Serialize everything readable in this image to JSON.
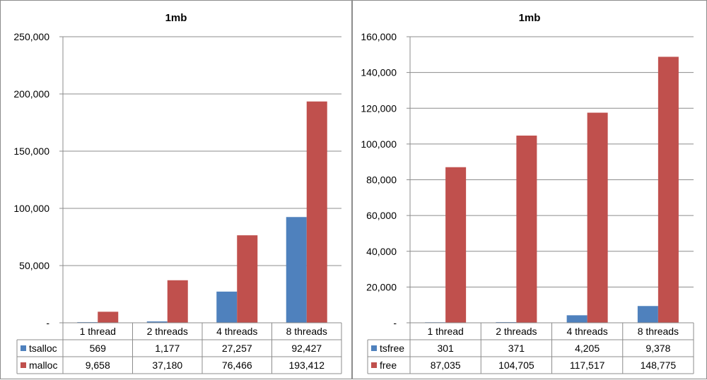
{
  "charts": [
    {
      "title": "1mb",
      "type": "bar",
      "categories": [
        "1 thread",
        "2 threads",
        "4 threads",
        "8 threads"
      ],
      "ylim": [
        0,
        250000
      ],
      "y_ticks": [
        "-",
        "50,000",
        "100,000",
        "150,000",
        "200,000",
        "250,000"
      ],
      "series": [
        {
          "name": "tsalloc",
          "color": "#4F81BD",
          "values": [
            569,
            1177,
            27257,
            92427
          ],
          "labels": [
            "569",
            "1,177",
            "27,257",
            "92,427"
          ]
        },
        {
          "name": "malloc",
          "color": "#C0504D",
          "values": [
            9658,
            37180,
            76466,
            193412
          ],
          "labels": [
            "9,658",
            "37,180",
            "76,466",
            "193,412"
          ]
        }
      ]
    },
    {
      "title": "1mb",
      "type": "bar",
      "categories": [
        "1 thread",
        "2 threads",
        "4 threads",
        "8 threads"
      ],
      "ylim": [
        0,
        160000
      ],
      "y_ticks": [
        "-",
        "20,000",
        "40,000",
        "60,000",
        "80,000",
        "100,000",
        "120,000",
        "140,000",
        "160,000"
      ],
      "series": [
        {
          "name": "tsfree",
          "color": "#4F81BD",
          "values": [
            301,
            371,
            4205,
            9378
          ],
          "labels": [
            "301",
            "371",
            "4,205",
            "9,378"
          ]
        },
        {
          "name": "free",
          "color": "#C0504D",
          "values": [
            87035,
            104705,
            117517,
            148775
          ],
          "labels": [
            "87,035",
            "104,705",
            "117,517",
            "148,775"
          ]
        }
      ]
    }
  ],
  "chart_data": [
    {
      "type": "bar",
      "title": "1mb",
      "categories": [
        "1 thread",
        "2 threads",
        "4 threads",
        "8 threads"
      ],
      "series": [
        {
          "name": "tsalloc",
          "values": [
            569,
            1177,
            27257,
            92427
          ]
        },
        {
          "name": "malloc",
          "values": [
            9658,
            37180,
            76466,
            193412
          ]
        }
      ],
      "ylim": [
        0,
        250000
      ],
      "grid": true,
      "legend": "data-table"
    },
    {
      "type": "bar",
      "title": "1mb",
      "categories": [
        "1 thread",
        "2 threads",
        "4 threads",
        "8 threads"
      ],
      "series": [
        {
          "name": "tsfree",
          "values": [
            301,
            371,
            4205,
            9378
          ]
        },
        {
          "name": "free",
          "values": [
            87035,
            104705,
            117517,
            148775
          ]
        }
      ],
      "ylim": [
        0,
        160000
      ],
      "grid": true,
      "legend": "data-table"
    }
  ]
}
